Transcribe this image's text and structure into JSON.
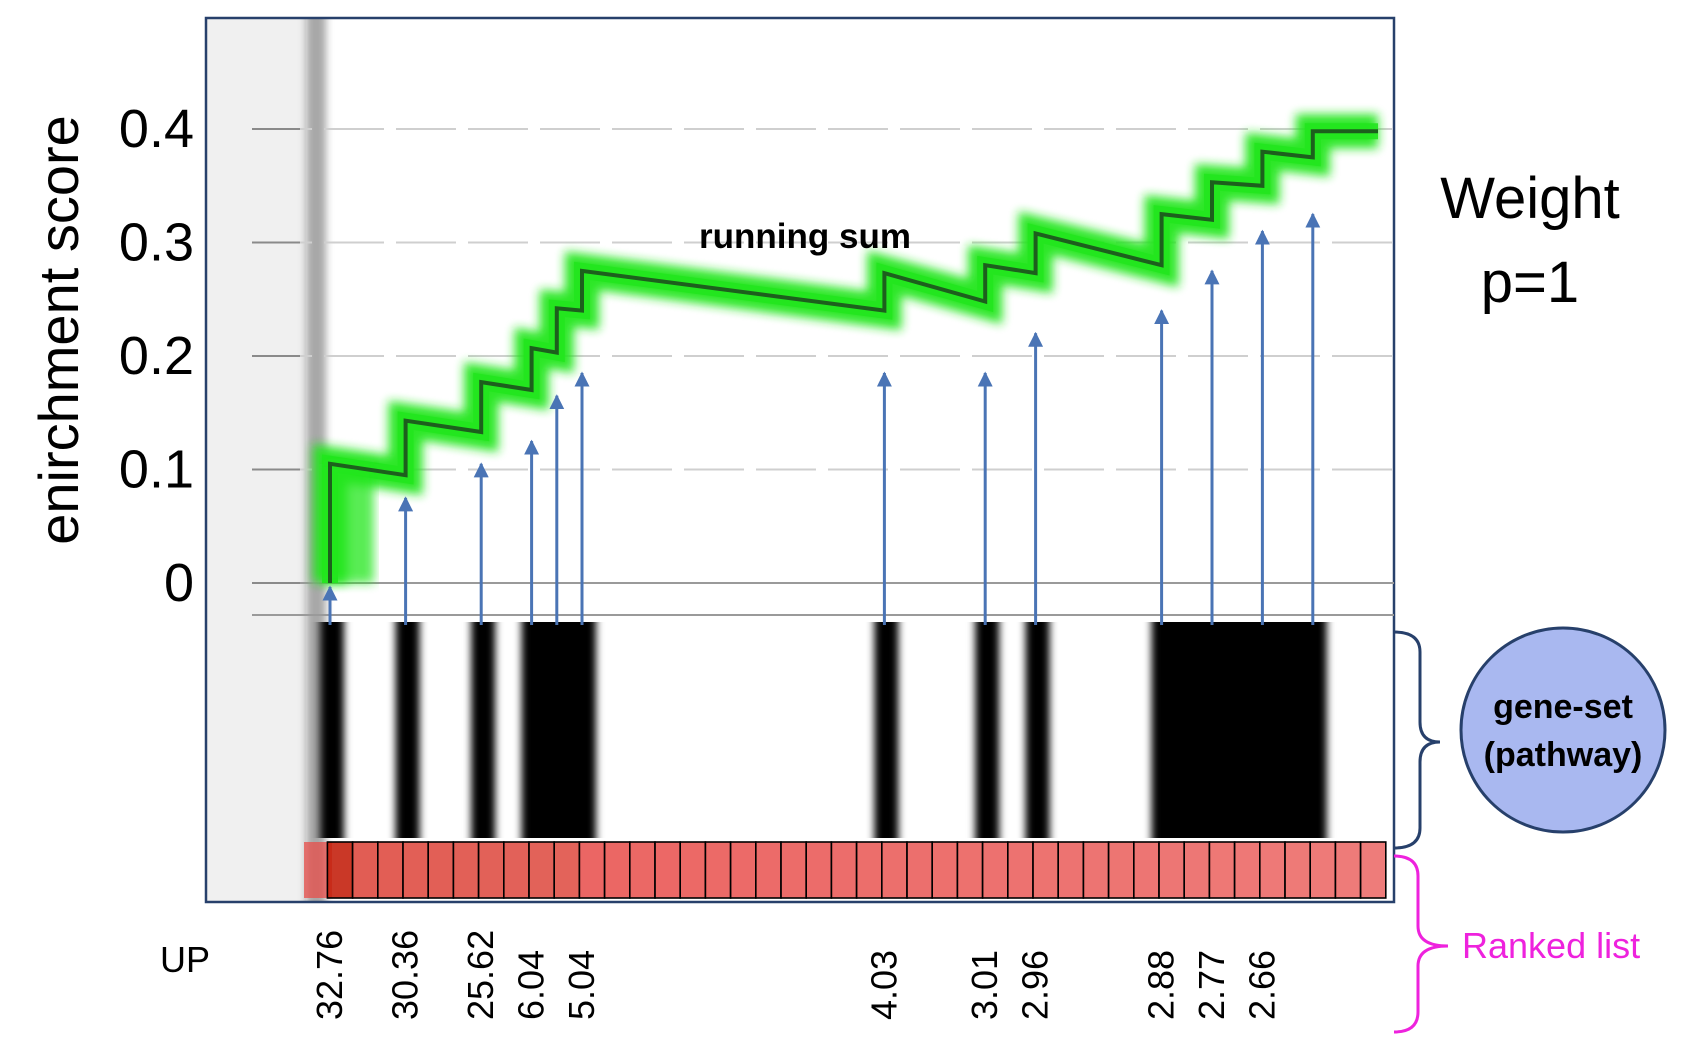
{
  "chart_data": {
    "type": "line",
    "ylabel": "enirchment score",
    "ylim": [
      -0.02,
      0.46
    ],
    "y_ticks": [
      "0",
      "0.1",
      "0.2",
      "0.3",
      "0.4"
    ],
    "y_tick_values": [
      0,
      0.1,
      0.2,
      0.3,
      0.4
    ],
    "running_sum_label": "running sum",
    "x_start_label": "UP",
    "n_ranked": 42,
    "hit_positions": [
      0,
      3,
      6,
      8,
      9,
      10,
      22,
      26,
      28,
      33,
      35,
      37,
      39
    ],
    "hit_labels": [
      "32.76",
      "30.36",
      "25.62",
      "6.04",
      "5.04",
      "4.03",
      "3.01",
      "2.96",
      "2.88",
      "2.77",
      "2.66"
    ],
    "hit_label_positions": [
      0,
      3,
      6,
      8,
      10,
      22,
      26,
      28,
      33,
      35,
      37
    ],
    "series": [
      {
        "x": [
          0,
          0,
          3,
          3,
          6,
          6,
          8,
          8,
          9,
          9,
          10,
          10,
          22,
          22,
          26,
          26,
          28,
          28,
          33,
          33,
          35,
          35,
          37,
          37,
          39,
          39,
          40
        ],
        "values": [
          0,
          0.105,
          0.095,
          0.143,
          0.133,
          0.177,
          0.17,
          0.207,
          0.203,
          0.242,
          0.24,
          0.275,
          0.24,
          0.273,
          0.248,
          0.28,
          0.273,
          0.308,
          0.28,
          0.325,
          0.32,
          0.353,
          0.35,
          0.38,
          0.375,
          0.398,
          0.398
        ]
      }
    ],
    "colors": {
      "running_sum_line": "#1d5f1d",
      "running_sum_glow": "#22e61e",
      "arrows": "#4a74b5",
      "hit_bars": "#000000",
      "ranked_boxes": "#e84d4a",
      "gene_set_circle": "#a9b8f0",
      "gene_set_bracket": "#27406b",
      "ranked_bracket": "#ee22dd",
      "gray_band": "#f0f0f0"
    }
  },
  "annotations": {
    "weight_line1": "Weight",
    "weight_line2": "p=1",
    "gene_set_line1": "gene-set",
    "gene_set_line2": "(pathway)",
    "ranked_list": "Ranked list"
  }
}
